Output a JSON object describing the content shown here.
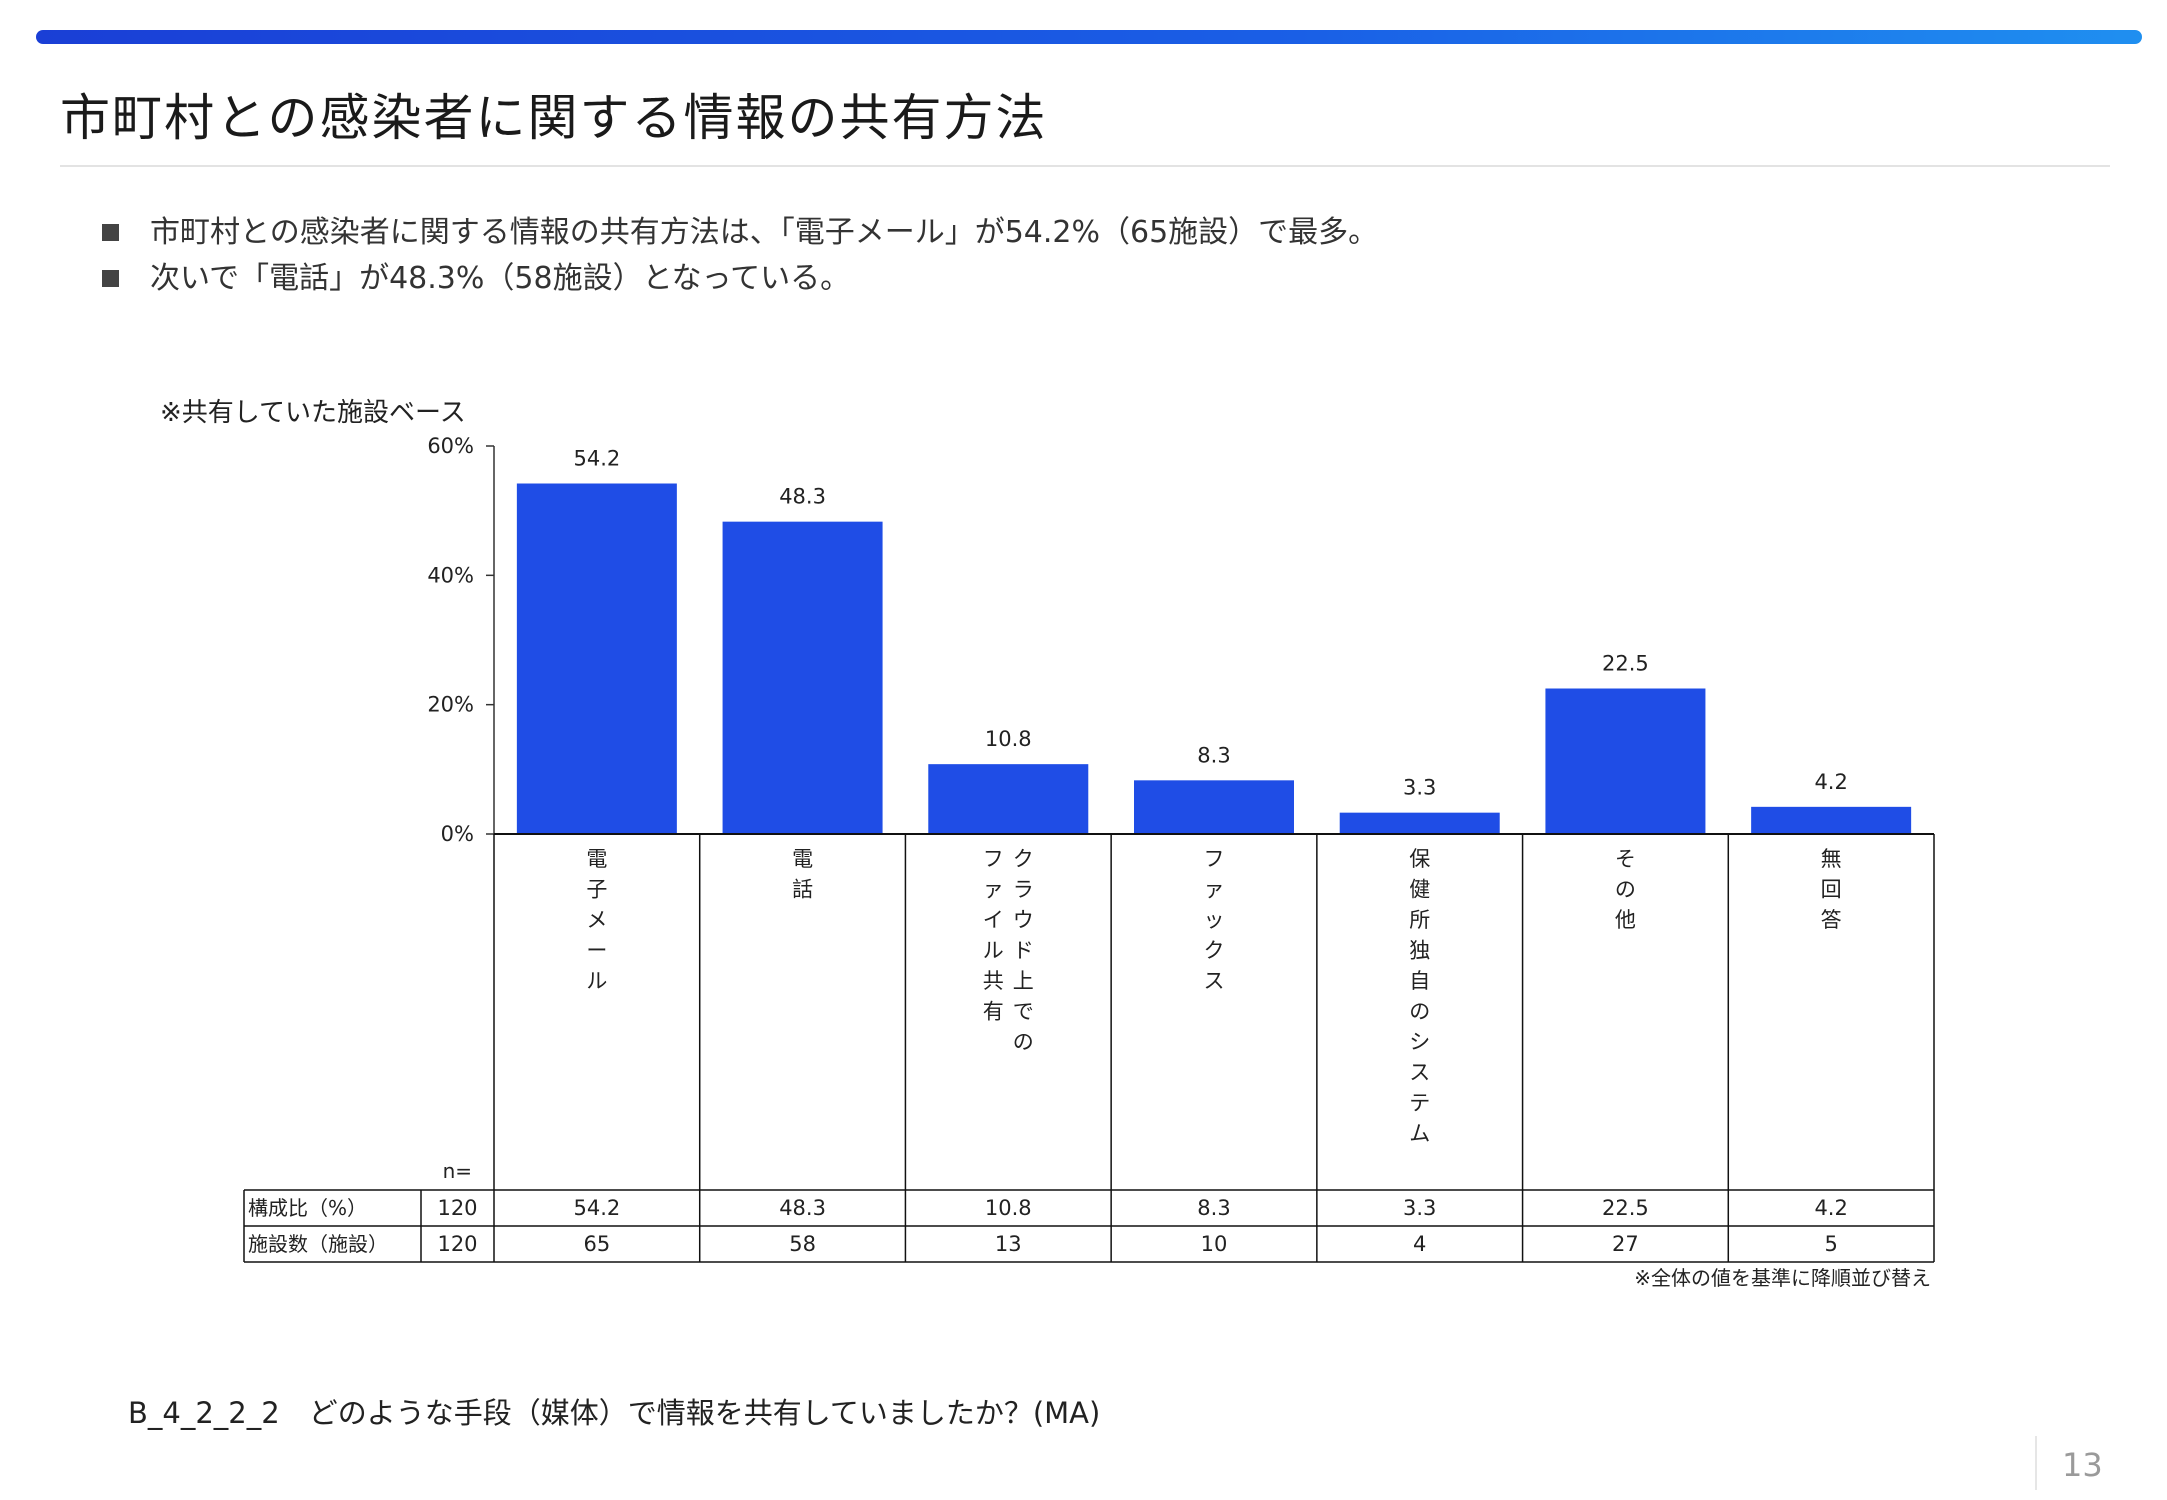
{
  "slide": {
    "title": "市町村との感染者に関する情報の共有方法",
    "bullets": [
      "市町村との感染者に関する情報の共有方法は、「電子メール」が54.2%（65施設）で最多。",
      "次いで「電話」が48.3%（58施設）となっている。"
    ],
    "base_note": "※共有していた施設ベース",
    "sort_note": "※全体の値を基準に降順並び替え",
    "question": "B_4_2_2_2　どのような手段（媒体）で情報を共有していましたか？(MA)",
    "page_number": "13"
  },
  "colors": {
    "bar": "#1f4de6",
    "accent": "#1a4fe0"
  },
  "chart_data": {
    "type": "bar",
    "categories": [
      "電子メール",
      "電話",
      "クラウド上でのファイル共有",
      "ファックス",
      "保健所独自のシステム",
      "その他",
      "無回答"
    ],
    "category_columns": [
      [
        "電子メール"
      ],
      [
        "電話"
      ],
      [
        "ファイル共有",
        "クラウド上での"
      ],
      [
        "ファックス"
      ],
      [
        "保健所独自のシステム"
      ],
      [
        "その他"
      ],
      [
        "無回答"
      ]
    ],
    "values": [
      54.2,
      48.3,
      10.8,
      8.3,
      3.3,
      22.5,
      4.2
    ],
    "data_labels": [
      "54.2",
      "48.3",
      "10.8",
      "8.3",
      "3.3",
      "22.5",
      "4.2"
    ],
    "ylim": [
      0,
      60
    ],
    "yticks": [
      0,
      20,
      40,
      60
    ],
    "ytick_labels": [
      "0%",
      "20%",
      "40%",
      "60%"
    ],
    "n_label": "n=",
    "table": {
      "rows": [
        {
          "label": "構成比（%）",
          "n": "120",
          "cells": [
            "54.2",
            "48.3",
            "10.8",
            "8.3",
            "3.3",
            "22.5",
            "4.2"
          ]
        },
        {
          "label": "施設数（施設）",
          "n": "120",
          "cells": [
            "65",
            "58",
            "13",
            "10",
            "4",
            "27",
            "5"
          ]
        }
      ]
    }
  }
}
